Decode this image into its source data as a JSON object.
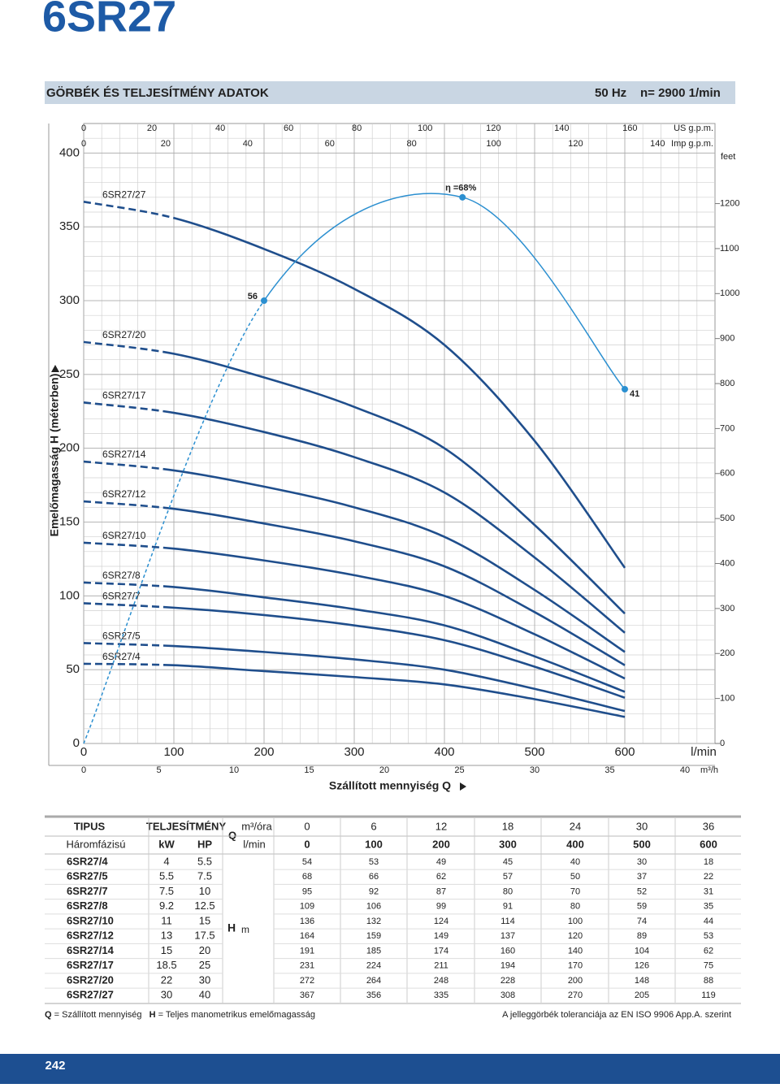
{
  "header": {
    "title": "6SR27",
    "section": "GÖRBÉK ÉS TELJESÍTMÉNY ADATOK",
    "frequency": "50 Hz",
    "speed": "n= 2900 1/min"
  },
  "chart_data": {
    "type": "line",
    "ylabel": "Emelőmagasság  H  (méterben)",
    "xlabel": "Szállított mennyiség  Q",
    "x": [
      0,
      100,
      200,
      300,
      400,
      500,
      600
    ],
    "xlim": [
      0,
      700
    ],
    "xticks": [
      0,
      100,
      200,
      300,
      400,
      500,
      600
    ],
    "xunit": "l/min",
    "ylim": [
      0,
      420
    ],
    "yticks": [
      0,
      50,
      100,
      150,
      200,
      250,
      300,
      350,
      400
    ],
    "grid": true,
    "secondary_axes": [
      {
        "unit": "m³/h",
        "position": "bottom",
        "lim": [
          0,
          42
        ],
        "ticks": [
          0,
          5,
          10,
          15,
          20,
          25,
          30,
          35,
          40
        ]
      },
      {
        "unit": "US g.p.m.",
        "position": "top",
        "lim": [
          0,
          184.9
        ],
        "ticks": [
          0,
          20,
          40,
          60,
          80,
          100,
          120,
          140,
          160
        ]
      },
      {
        "unit": "Imp g.p.m.",
        "position": "top",
        "lim": [
          0,
          154
        ],
        "ticks": [
          0,
          20,
          40,
          60,
          80,
          100,
          120,
          140
        ]
      },
      {
        "unit": "feet",
        "position": "right",
        "lim": [
          0,
          1378
        ],
        "ticks": [
          0,
          100,
          200,
          300,
          400,
          500,
          600,
          700,
          800,
          900,
          1000,
          1100,
          1200
        ]
      }
    ],
    "series": [
      {
        "name": "6SR27/4",
        "color": "#1f4e8c",
        "values": [
          54,
          53,
          49,
          45,
          40,
          30,
          18
        ]
      },
      {
        "name": "6SR27/5",
        "color": "#1f4e8c",
        "values": [
          68,
          66,
          62,
          57,
          50,
          37,
          22
        ]
      },
      {
        "name": "6SR27/7",
        "color": "#1f4e8c",
        "values": [
          95,
          92,
          87,
          80,
          70,
          52,
          31
        ]
      },
      {
        "name": "6SR27/8",
        "color": "#1f4e8c",
        "values": [
          109,
          106,
          99,
          91,
          80,
          59,
          35
        ]
      },
      {
        "name": "6SR27/10",
        "color": "#1f4e8c",
        "values": [
          136,
          132,
          124,
          114,
          100,
          74,
          44
        ]
      },
      {
        "name": "6SR27/12",
        "color": "#1f4e8c",
        "values": [
          164,
          159,
          149,
          137,
          120,
          89,
          53
        ]
      },
      {
        "name": "6SR27/14",
        "color": "#1f4e8c",
        "values": [
          191,
          185,
          174,
          160,
          140,
          104,
          62
        ]
      },
      {
        "name": "6SR27/17",
        "color": "#1f4e8c",
        "values": [
          231,
          224,
          211,
          194,
          170,
          126,
          75
        ]
      },
      {
        "name": "6SR27/20",
        "color": "#1f4e8c",
        "values": [
          272,
          264,
          248,
          228,
          200,
          148,
          88
        ]
      },
      {
        "name": "6SR27/27",
        "color": "#1f4e8c",
        "values": [
          367,
          356,
          335,
          308,
          270,
          205,
          119
        ]
      }
    ],
    "efficiency": {
      "color": "#2b8fd0",
      "x": [
        200,
        420,
        600
      ],
      "values": [
        300,
        370,
        240
      ],
      "labels": [
        "56",
        "η =68%",
        "41"
      ]
    }
  },
  "table": {
    "headers": {
      "type": "TIPUS",
      "power": "TELJESÍTMÉNY",
      "phase": "Háromfázisú",
      "kw": "kW",
      "hp": "HP",
      "q": "Q",
      "q_unit_m3h": "m³/óra",
      "q_unit_lmin": "l/min",
      "h": "H",
      "h_unit": "m"
    },
    "q_m3h": [
      0,
      6,
      12,
      18,
      24,
      30,
      36
    ],
    "rows": [
      {
        "kw": 4,
        "hp": 5.5
      },
      {
        "kw": 5.5,
        "hp": 7.5
      },
      {
        "kw": 7.5,
        "hp": 10
      },
      {
        "kw": 9.2,
        "hp": 12.5
      },
      {
        "kw": 11,
        "hp": 15
      },
      {
        "kw": 13,
        "hp": 17.5
      },
      {
        "kw": 15,
        "hp": 20
      },
      {
        "kw": 18.5,
        "hp": 25
      },
      {
        "kw": 22,
        "hp": 30
      },
      {
        "kw": 30,
        "hp": 40
      }
    ]
  },
  "notes": {
    "left": [
      {
        "key": "Q",
        "text": "= Szállított mennyiség"
      },
      {
        "key": "H",
        "text": "= Teljes manometrikus emelőmagasság"
      }
    ],
    "right": "A jelleggörbék toleranciája az EN ISO 9906 App.A. szerint"
  },
  "page_number": "242"
}
